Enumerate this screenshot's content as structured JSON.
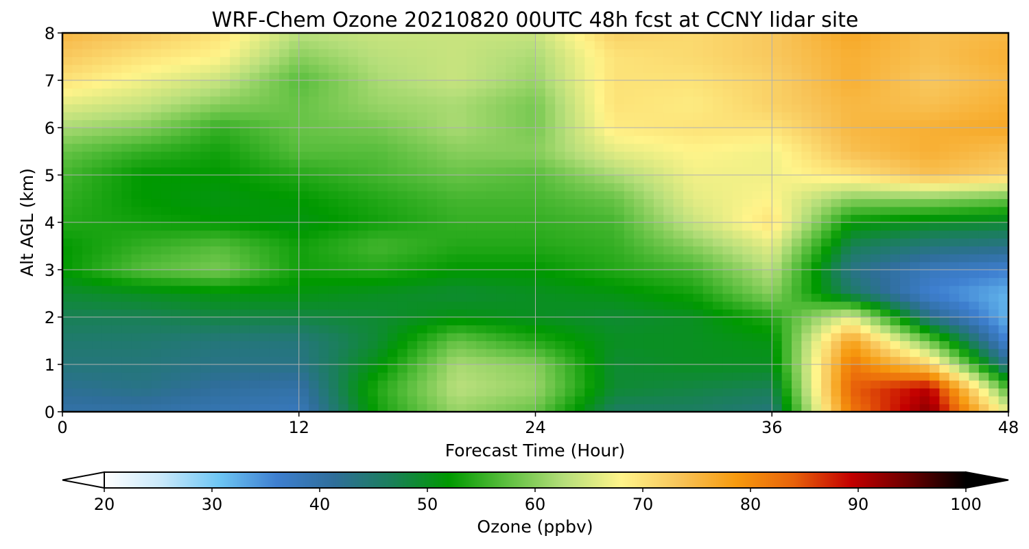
{
  "chart_data": {
    "type": "heatmap",
    "title": "WRF-Chem Ozone  20210820 00UTC 48h fcst at CCNY lidar site",
    "xlabel": "Forecast Time (Hour)",
    "ylabel": "Alt AGL (km)",
    "xlim": [
      0,
      48
    ],
    "ylim": [
      0,
      8
    ],
    "x_ticks": [
      "0",
      "12",
      "24",
      "36",
      "48"
    ],
    "y_ticks": [
      "0",
      "1",
      "2",
      "3",
      "4",
      "5",
      "6",
      "7",
      "8"
    ],
    "grid": true,
    "colorbar": {
      "label": "Ozone  (ppbv)",
      "range": [
        20,
        100
      ],
      "ticks": [
        "20",
        "30",
        "40",
        "50",
        "60",
        "70",
        "80",
        "90",
        "100"
      ],
      "extend": "both",
      "orientation": "horizontal",
      "colors": [
        "#ffffff",
        "#c8e8fa",
        "#6ec6f4",
        "#3e7fd0",
        "#2f6e9a",
        "#1a7f5a",
        "#009900",
        "#5cbf3f",
        "#b5de7a",
        "#fff48a",
        "#f8c55a",
        "#f79a0e",
        "#e8620a",
        "#c30000",
        "#6a0000",
        "#000000"
      ]
    },
    "x_hours": [
      0,
      4,
      8,
      12,
      16,
      20,
      24,
      28,
      32,
      36,
      40,
      44,
      48
    ],
    "z_km": [
      0,
      0.5,
      1,
      1.5,
      2,
      2.5,
      3,
      3.5,
      4,
      4.5,
      5,
      5.5,
      6,
      6.5,
      7,
      7.5,
      8
    ],
    "ozone_ppbv": [
      [
        40,
        40,
        39,
        38,
        53,
        61,
        58,
        46,
        46,
        44,
        82,
        93,
        66
      ],
      [
        42,
        43,
        41,
        40,
        54,
        63,
        61,
        49,
        48,
        47,
        84,
        90,
        56
      ],
      [
        44,
        44,
        43,
        43,
        51,
        62,
        60,
        49,
        50,
        50,
        82,
        72,
        42
      ],
      [
        45,
        45,
        44,
        44,
        49,
        58,
        54,
        50,
        50,
        51,
        78,
        58,
        35
      ],
      [
        47,
        47,
        48,
        48,
        49,
        51,
        50,
        49,
        50,
        54,
        66,
        43,
        32
      ],
      [
        49,
        50,
        51,
        51,
        50,
        49,
        50,
        51,
        53,
        60,
        46,
        36,
        32
      ],
      [
        52,
        57,
        59,
        53,
        54,
        52,
        52,
        54,
        56,
        63,
        43,
        38,
        36
      ],
      [
        52,
        55,
        57,
        53,
        56,
        54,
        54,
        55,
        60,
        66,
        47,
        44,
        43
      ],
      [
        54,
        53,
        52,
        51,
        53,
        55,
        55,
        56,
        64,
        70,
        52,
        50,
        49
      ],
      [
        55,
        52,
        51,
        52,
        54,
        56,
        56,
        58,
        66,
        68,
        60,
        60,
        58
      ],
      [
        56,
        52,
        52,
        54,
        56,
        58,
        57,
        62,
        67,
        67,
        70,
        74,
        72
      ],
      [
        58,
        55,
        53,
        57,
        57,
        60,
        60,
        66,
        68,
        67,
        74,
        76,
        74
      ],
      [
        62,
        60,
        55,
        58,
        59,
        62,
        59,
        69,
        70,
        70,
        75,
        76,
        77
      ],
      [
        66,
        64,
        60,
        58,
        61,
        62,
        59,
        70,
        69,
        72,
        75,
        74,
        76
      ],
      [
        70,
        67,
        64,
        57,
        62,
        64,
        61,
        70,
        70,
        72,
        76,
        73,
        75
      ],
      [
        73,
        70,
        68,
        60,
        63,
        64,
        62,
        70,
        71,
        73,
        76,
        74,
        76
      ],
      [
        75,
        73,
        70,
        63,
        64,
        64,
        64,
        72,
        71,
        73,
        77,
        74,
        75
      ]
    ]
  }
}
